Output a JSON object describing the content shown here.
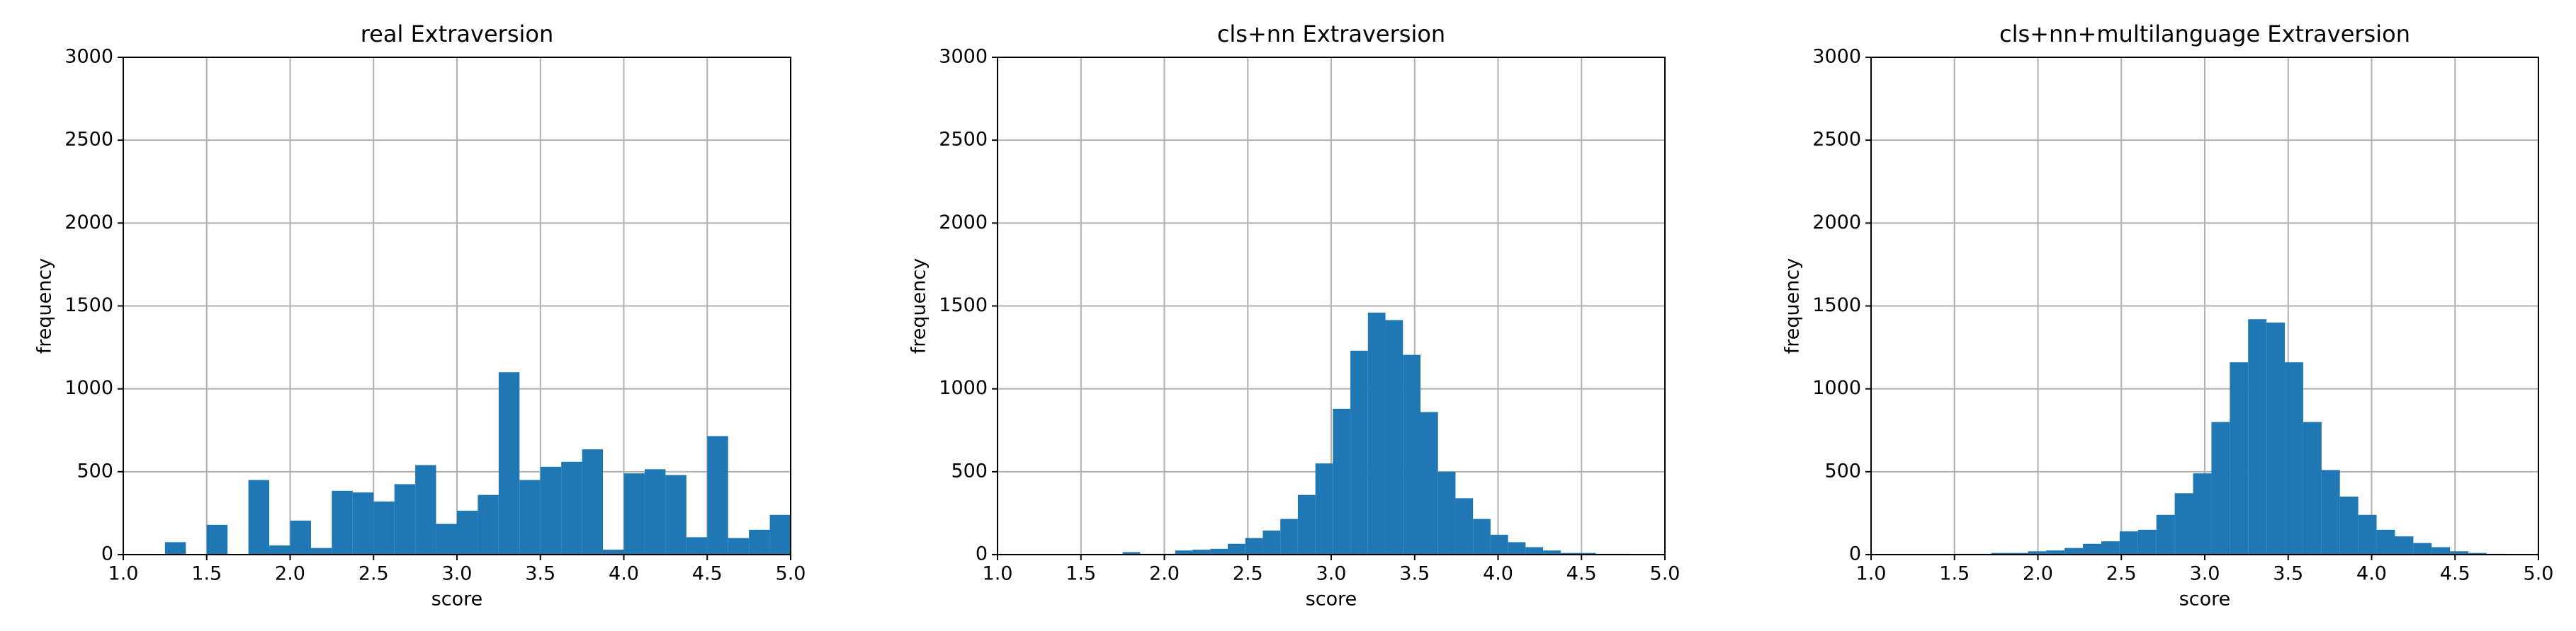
{
  "chart_data": [
    {
      "type": "histogram",
      "title": "real Extraversion",
      "xlabel": "score",
      "ylabel": "frequency",
      "color": "#1f77b4",
      "grid": true,
      "bins": [
        1.25,
        1.375,
        1.5,
        1.625,
        1.75,
        1.875,
        2.0,
        2.125,
        2.25,
        2.375,
        2.5,
        2.625,
        2.75,
        2.875,
        3.0,
        3.125,
        3.25,
        3.375,
        3.5,
        3.625,
        3.75,
        3.875,
        4.0,
        4.125,
        4.25,
        4.375,
        4.5,
        4.625,
        4.75,
        4.875,
        5.0
      ],
      "values": [
        75,
        0,
        180,
        0,
        450,
        55,
        205,
        40,
        385,
        375,
        320,
        425,
        540,
        185,
        265,
        360,
        1100,
        450,
        530,
        560,
        635,
        30,
        490,
        515,
        480,
        105,
        715,
        100,
        150,
        240
      ],
      "xlim": [
        1.0,
        5.0
      ],
      "ylim": [
        0,
        3000
      ],
      "xticks": [
        {
          "value": 1.0,
          "label": "1.0"
        },
        {
          "value": 1.5,
          "label": "1.5"
        },
        {
          "value": 2.0,
          "label": "2.0"
        },
        {
          "value": 2.5,
          "label": "2.5"
        },
        {
          "value": 3.0,
          "label": "3.0"
        },
        {
          "value": 3.5,
          "label": "3.5"
        },
        {
          "value": 4.0,
          "label": "4.0"
        },
        {
          "value": 4.5,
          "label": "4.5"
        },
        {
          "value": 5.0,
          "label": "5.0"
        }
      ],
      "yticks": [
        0,
        500,
        1000,
        1500,
        2000,
        2500,
        3000
      ]
    },
    {
      "type": "histogram",
      "title": "cls+nn Extraversion",
      "xlabel": "score",
      "ylabel": "frequency",
      "color": "#1f77b4",
      "grid": true,
      "bins": [
        1.75,
        1.855,
        1.96,
        2.065,
        2.17,
        2.275,
        2.38,
        2.485,
        2.59,
        2.695,
        2.8,
        2.905,
        3.01,
        3.115,
        3.22,
        3.325,
        3.43,
        3.535,
        3.64,
        3.745,
        3.85,
        3.955,
        4.06,
        4.165,
        4.27,
        4.375,
        4.48,
        4.585,
        4.69,
        4.795,
        4.9
      ],
      "values": [
        15,
        5,
        5,
        25,
        30,
        35,
        65,
        100,
        145,
        215,
        360,
        550,
        880,
        1230,
        1460,
        1415,
        1205,
        860,
        500,
        340,
        215,
        120,
        75,
        45,
        25,
        10,
        10,
        5,
        5,
        0
      ],
      "xlim": [
        1.0,
        5.0
      ],
      "ylim": [
        0,
        3000
      ],
      "xticks": [
        {
          "value": 1.0,
          "label": "1.0"
        },
        {
          "value": 1.5,
          "label": "1.5"
        },
        {
          "value": 2.0,
          "label": "2.0"
        },
        {
          "value": 2.5,
          "label": "2.5"
        },
        {
          "value": 3.0,
          "label": "3.0"
        },
        {
          "value": 3.5,
          "label": "3.5"
        },
        {
          "value": 4.0,
          "label": "4.0"
        },
        {
          "value": 4.5,
          "label": "4.5"
        },
        {
          "value": 5.0,
          "label": "5.0"
        }
      ],
      "yticks": [
        0,
        500,
        1000,
        1500,
        2000,
        2500,
        3000
      ]
    },
    {
      "type": "histogram",
      "title": "cls+nn+multilanguage Extraversion",
      "xlabel": "score",
      "ylabel": "frequency",
      "color": "#1f77b4",
      "grid": true,
      "bins": [
        1.5,
        1.61,
        1.72,
        1.83,
        1.94,
        2.05,
        2.16,
        2.27,
        2.38,
        2.49,
        2.6,
        2.71,
        2.82,
        2.93,
        3.04,
        3.15,
        3.26,
        3.37,
        3.48,
        3.59,
        3.7,
        3.81,
        3.92,
        4.03,
        4.14,
        4.25,
        4.36,
        4.47,
        4.58,
        4.69,
        4.8
      ],
      "values": [
        5,
        5,
        10,
        10,
        20,
        25,
        40,
        65,
        80,
        140,
        150,
        240,
        370,
        490,
        800,
        1160,
        1420,
        1400,
        1160,
        800,
        510,
        350,
        240,
        150,
        110,
        70,
        45,
        20,
        10,
        5
      ],
      "xlim": [
        1.0,
        5.0
      ],
      "ylim": [
        0,
        3000
      ],
      "xticks": [
        {
          "value": 1.0,
          "label": "1.0"
        },
        {
          "value": 1.5,
          "label": "1.5"
        },
        {
          "value": 2.0,
          "label": "2.0"
        },
        {
          "value": 2.5,
          "label": "2.5"
        },
        {
          "value": 3.0,
          "label": "3.0"
        },
        {
          "value": 3.5,
          "label": "3.5"
        },
        {
          "value": 4.0,
          "label": "4.0"
        },
        {
          "value": 4.5,
          "label": "4.5"
        },
        {
          "value": 5.0,
          "label": "5.0"
        }
      ],
      "yticks": [
        0,
        500,
        1000,
        1500,
        2000,
        2500,
        3000
      ]
    }
  ]
}
